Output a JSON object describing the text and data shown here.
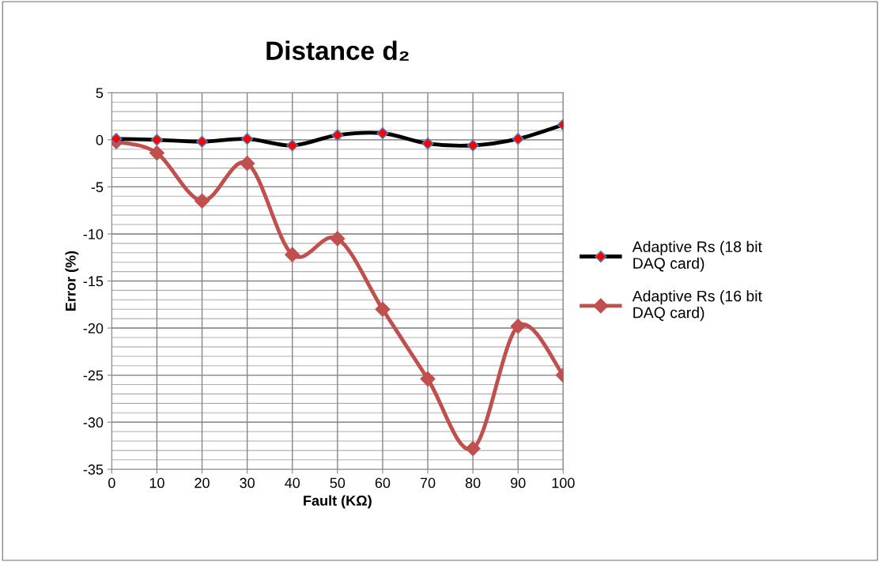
{
  "chart_data": {
    "type": "line",
    "title": "Distance d₂",
    "xlabel": "Fault (KΩ)",
    "ylabel": "Error (%)",
    "x": [
      1,
      10,
      20,
      30,
      40,
      50,
      60,
      70,
      80,
      90,
      100
    ],
    "series": [
      {
        "name": "Adaptive Rs (18 bit DAQ card)",
        "color": "#000000",
        "values": [
          0.1,
          0.0,
          -0.2,
          0.1,
          -0.6,
          0.5,
          0.7,
          -0.4,
          -0.6,
          0.1,
          1.6
        ]
      },
      {
        "name": "Adaptive Rs (16 bit DAQ card)",
        "color": "#c0504d",
        "values": [
          -0.2,
          -1.4,
          -6.5,
          -2.5,
          -12.2,
          -10.5,
          -18.0,
          -25.4,
          -32.8,
          -19.8,
          -25.0
        ]
      }
    ],
    "xlim": [
      0,
      100
    ],
    "xticks": [
      0,
      10,
      20,
      30,
      40,
      50,
      60,
      70,
      80,
      90,
      100
    ],
    "ylim": [
      -35,
      5
    ],
    "yticks": [
      -35,
      -30,
      -25,
      -20,
      -15,
      -10,
      -5,
      0,
      5
    ],
    "grid": true,
    "legend": "right",
    "marker": "diamond",
    "line_style": "solid"
  }
}
